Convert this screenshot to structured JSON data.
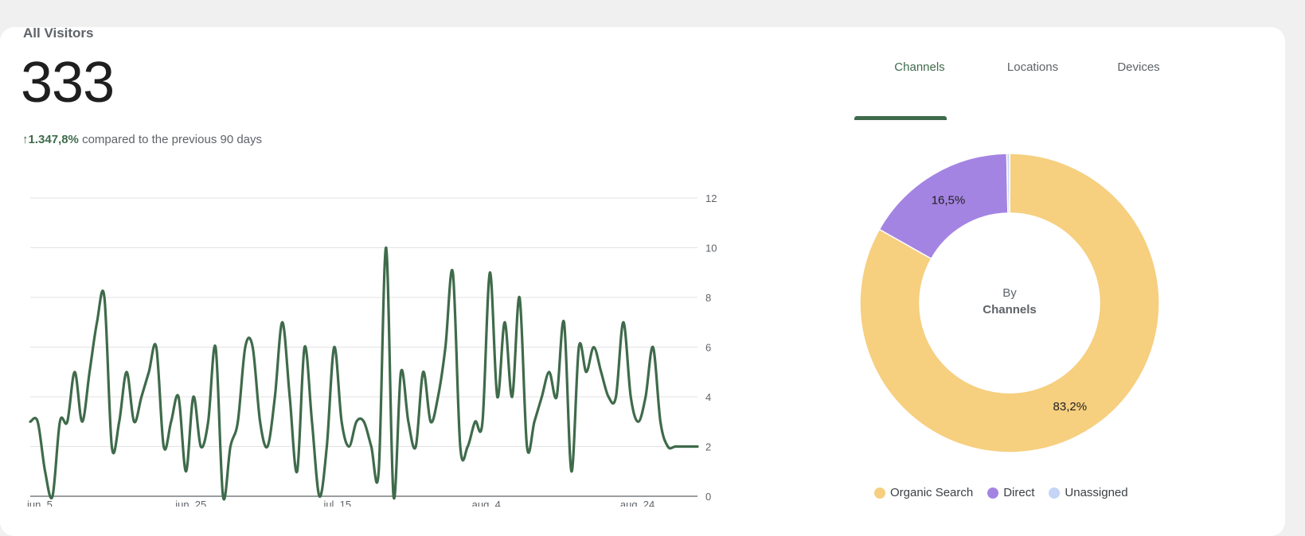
{
  "card": {
    "title": "All Visitors",
    "total": "333",
    "delta_arrow": "↑",
    "delta_pct": "1.347,8%",
    "delta_text": "compared to the previous 90 days"
  },
  "tabs": [
    {
      "label": "Channels",
      "active": true
    },
    {
      "label": "Locations",
      "active": false
    },
    {
      "label": "Devices",
      "active": false
    }
  ],
  "donut": {
    "center_line1": "By",
    "center_line2": "Channels",
    "legend": [
      {
        "label": "Organic Search",
        "color": "#f6cf7f"
      },
      {
        "label": "Direct",
        "color": "#a484e2"
      },
      {
        "label": "Unassigned",
        "color": "#c5d4f7"
      }
    ]
  },
  "colors": {
    "accent": "#3f6b4b",
    "organic": "#f6cf7f",
    "direct": "#a484e2",
    "unassigned": "#c5d4f7"
  },
  "chart_data": [
    {
      "type": "line",
      "title": "",
      "xlabel": "",
      "ylabel": "",
      "ylim": [
        0,
        12
      ],
      "y_ticks": [
        0,
        2,
        4,
        6,
        8,
        10,
        12
      ],
      "x_tick_labels": [
        "jun. 5",
        "jun. 25",
        "jul. 15",
        "aug. 4",
        "aug. 24"
      ],
      "grid": true,
      "series": [
        {
          "color": "#3f6b4b",
          "x": [
            "jun. 5",
            "jun. 6",
            "jun. 7",
            "jun. 8",
            "jun. 9",
            "jun. 10",
            "jun. 11",
            "jun. 12",
            "jun. 13",
            "jun. 14",
            "jun. 15",
            "jun. 16",
            "jun. 17",
            "jun. 18",
            "jun. 19",
            "jun. 20",
            "jun. 21",
            "jun. 22",
            "jun. 23",
            "jun. 24",
            "jun. 25",
            "jun. 26",
            "jun. 27",
            "jun. 28",
            "jun. 29",
            "jun. 30",
            "jul. 1",
            "jul. 2",
            "jul. 3",
            "jul. 4",
            "jul. 5",
            "jul. 6",
            "jul. 7",
            "jul. 8",
            "jul. 9",
            "jul. 10",
            "jul. 11",
            "jul. 12",
            "jul. 13",
            "jul. 14",
            "jul. 15",
            "jul. 16",
            "jul. 17",
            "jul. 18",
            "jul. 19",
            "jul. 20",
            "jul. 21",
            "jul. 22",
            "jul. 23",
            "jul. 24",
            "jul. 25",
            "jul. 26",
            "jul. 27",
            "jul. 28",
            "jul. 29",
            "jul. 30",
            "jul. 31",
            "aug. 1",
            "aug. 2",
            "aug. 3",
            "aug. 4",
            "aug. 5",
            "aug. 6",
            "aug. 7",
            "aug. 8",
            "aug. 9",
            "aug. 10",
            "aug. 11",
            "aug. 12",
            "aug. 13",
            "aug. 14",
            "aug. 15",
            "aug. 16",
            "aug. 17",
            "aug. 18",
            "aug. 19",
            "aug. 20",
            "aug. 21",
            "aug. 22",
            "aug. 23",
            "aug. 24",
            "aug. 25",
            "aug. 26",
            "aug. 27",
            "aug. 28",
            "aug. 29",
            "aug. 30",
            "aug. 31",
            "sep. 1",
            "sep. 2",
            "sep. 3"
          ],
          "values": [
            3,
            3,
            1,
            0,
            3,
            3,
            5,
            3,
            5,
            7,
            8,
            2,
            3,
            5,
            3,
            4,
            5,
            6,
            2,
            3,
            4,
            1,
            4,
            2,
            3,
            6,
            0,
            2,
            3,
            6,
            6,
            3,
            2,
            4,
            7,
            4,
            1,
            6,
            3,
            0,
            2,
            6,
            3,
            2,
            3,
            3,
            2,
            1,
            10,
            0,
            5,
            3,
            2,
            5,
            3,
            4,
            6,
            9,
            2,
            2,
            3,
            3,
            9,
            4,
            7,
            4,
            8,
            2,
            3,
            4,
            5,
            4,
            7,
            1,
            6,
            5,
            6,
            5,
            4,
            4,
            7,
            4,
            3,
            4,
            6,
            3,
            2,
            2,
            2,
            2,
            2
          ],
          "note_on_values": ""
        }
      ]
    },
    {
      "type": "pie",
      "title": "",
      "categories": [
        "Organic Search",
        "Direct",
        "Unassigned"
      ],
      "values": [
        83.2,
        16.5,
        0.3
      ],
      "data_labels": [
        "83,2%",
        "16,5%",
        ""
      ],
      "legend_position": "bottom"
    }
  ]
}
